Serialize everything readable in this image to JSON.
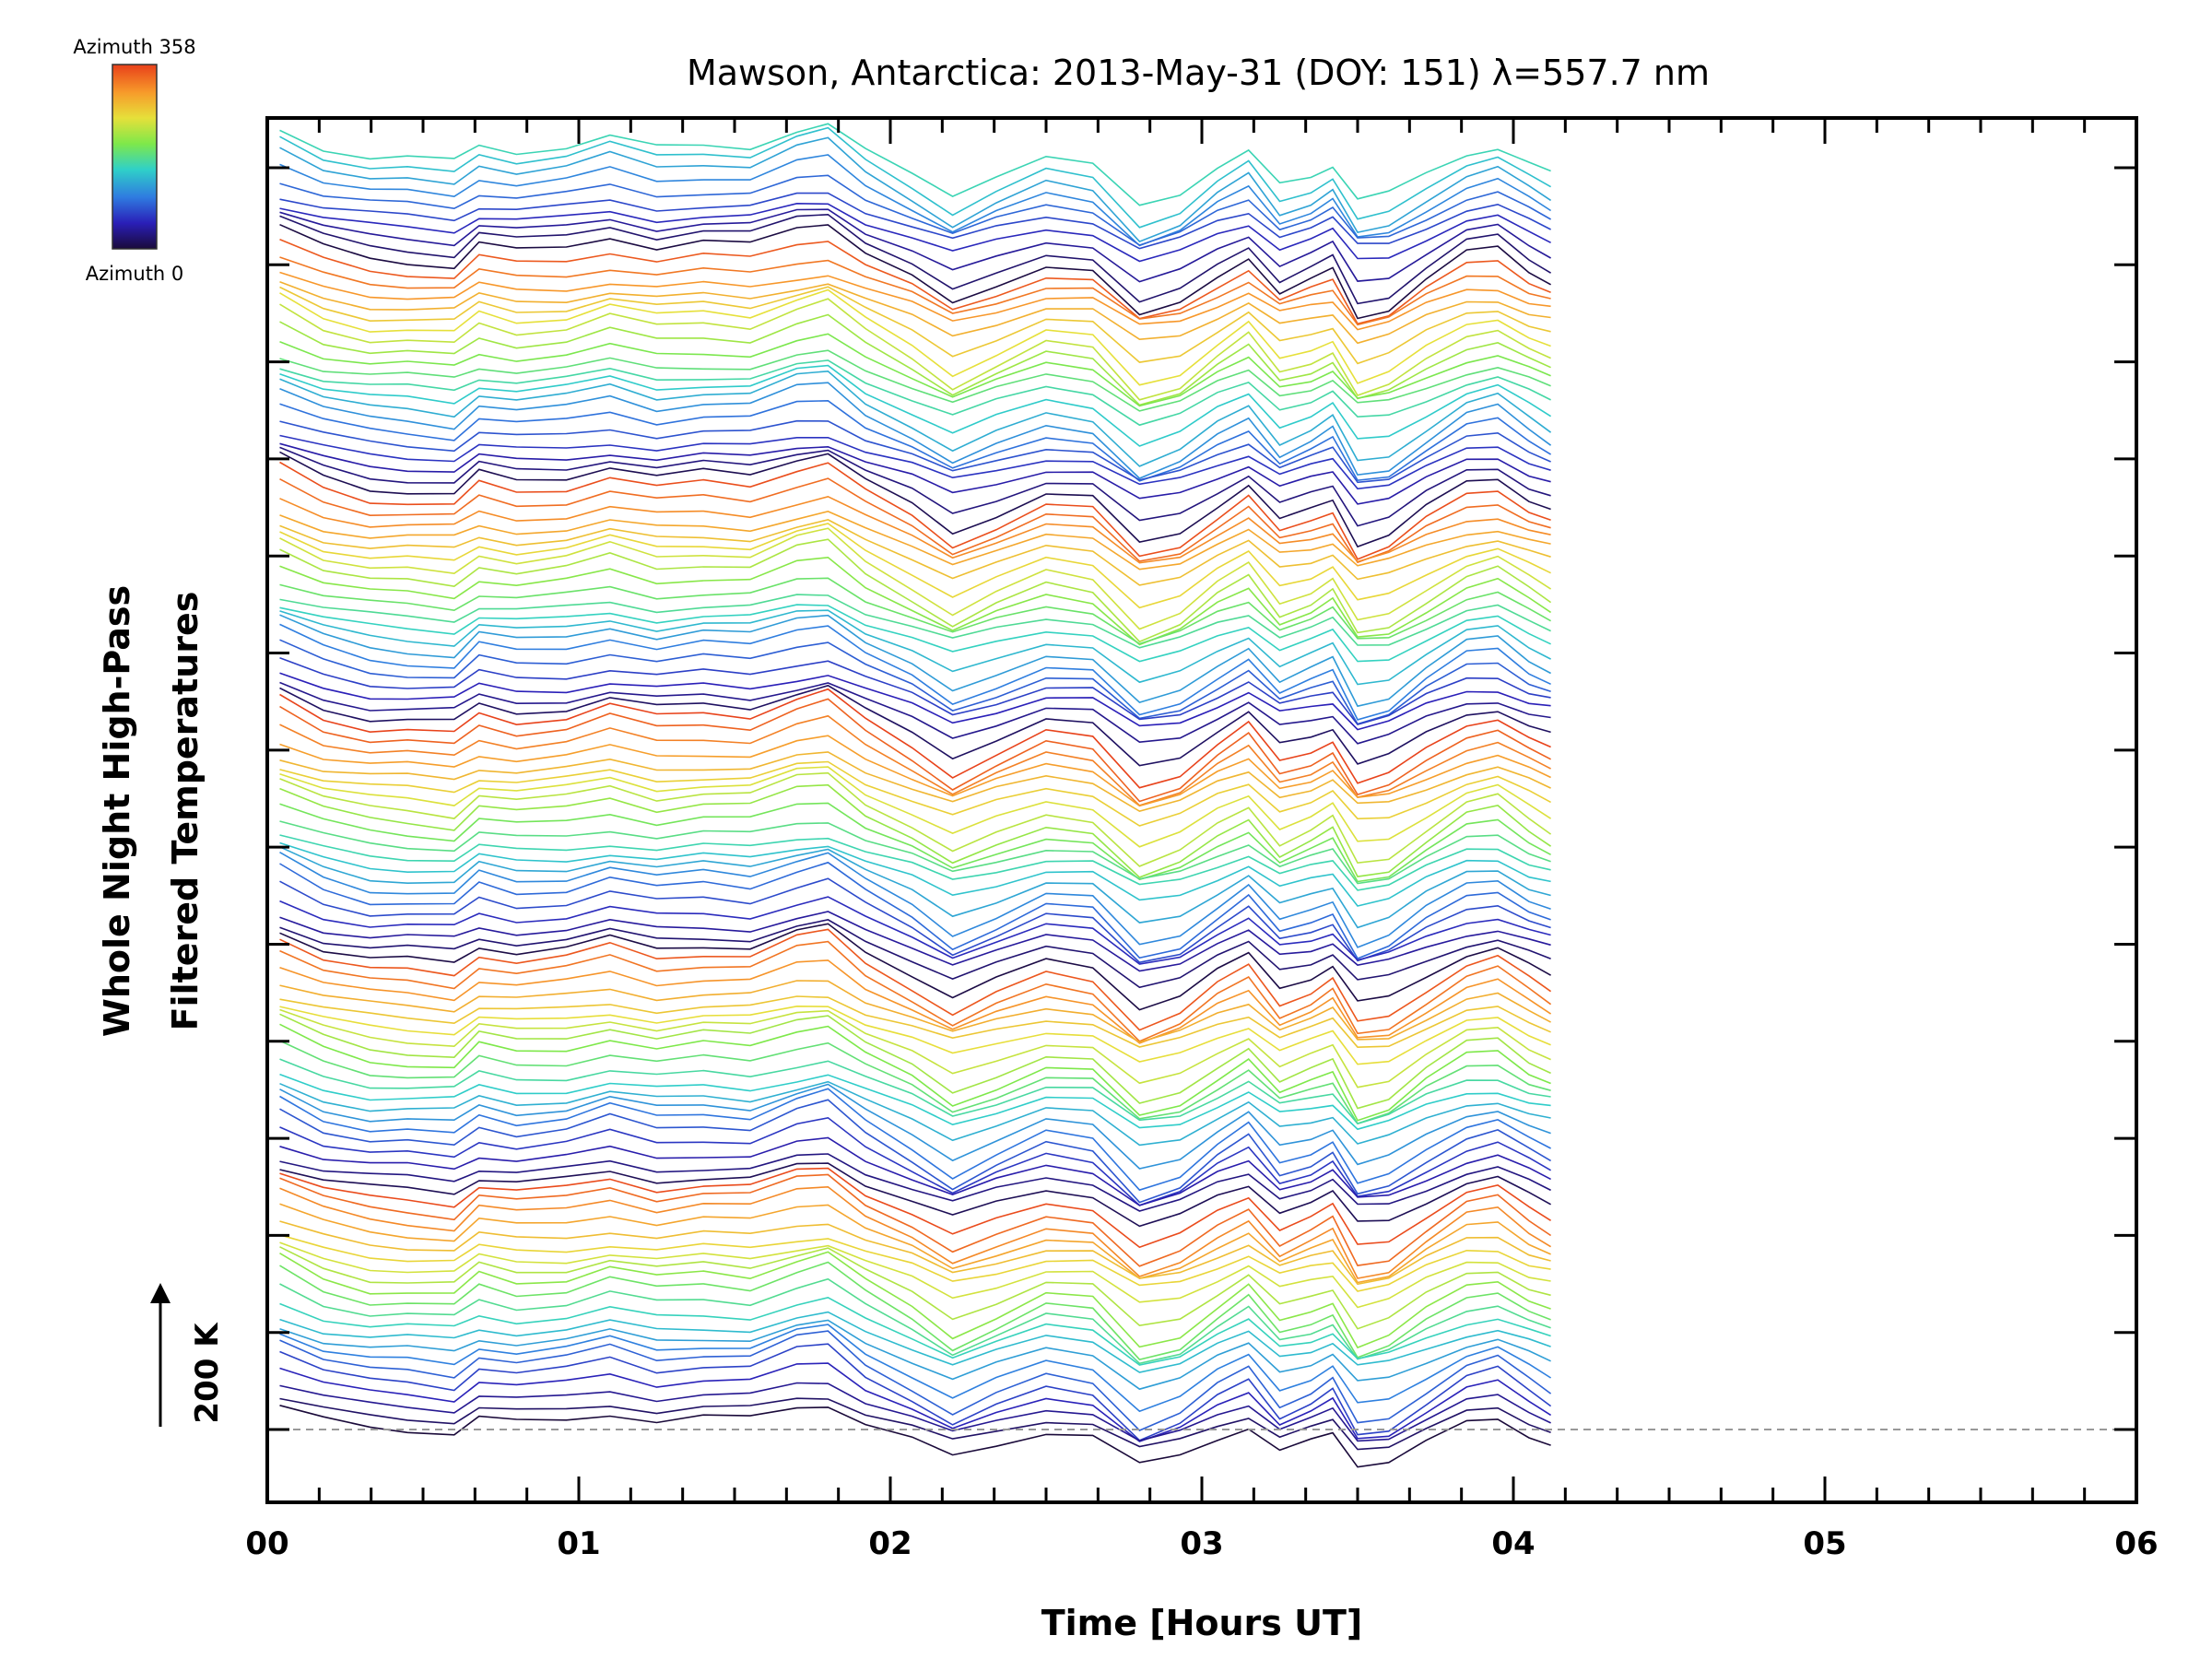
{
  "chart_data": {
    "type": "line",
    "title": "Mawson, Antarctica: 2013-May-31 (DOY: 151) λ=557.7 nm",
    "xlabel": "Time [Hours UT]",
    "ylabel_line1": "Whole Night High-Pass",
    "ylabel_line2": "Filtered Temperatures",
    "xlim": [
      0,
      6
    ],
    "x_ticks": [
      "00",
      "01",
      "02",
      "03",
      "04",
      "05",
      "06"
    ],
    "scale_bar_label": "200 K",
    "scale_bar_value_K": 200,
    "colorbar": {
      "top_label": "Azimuth 358",
      "bottom_label": "Azimuth 0",
      "colors": [
        "#1a0a3a",
        "#2a1fb8",
        "#2f7be0",
        "#2fd0c8",
        "#7ee84a",
        "#e6e03a",
        "#f79a2a",
        "#e8401a"
      ]
    },
    "baseline_style": "dashed grey",
    "traces_count": 112,
    "azimuth_range": [
      0,
      358
    ],
    "x": [
      0.04,
      0.18,
      0.33,
      0.45,
      0.6,
      0.68,
      0.8,
      0.96,
      1.1,
      1.25,
      1.4,
      1.55,
      1.7,
      1.8,
      1.92,
      2.07,
      2.2,
      2.34,
      2.5,
      2.65,
      2.8,
      2.93,
      3.05,
      3.15,
      3.25,
      3.35,
      3.42,
      3.5,
      3.6,
      3.72,
      3.85,
      3.95,
      4.05,
      4.12
    ],
    "profile_shape": [
      4,
      26,
      38,
      40,
      44,
      22,
      30,
      26,
      14,
      26,
      21,
      24,
      6,
      0,
      30,
      56,
      84,
      64,
      42,
      48,
      96,
      83,
      54,
      34,
      72,
      60,
      48,
      94,
      86,
      58,
      32,
      26,
      48,
      60
    ],
    "units": "K (high-pass filtered, stacked offsets)"
  }
}
